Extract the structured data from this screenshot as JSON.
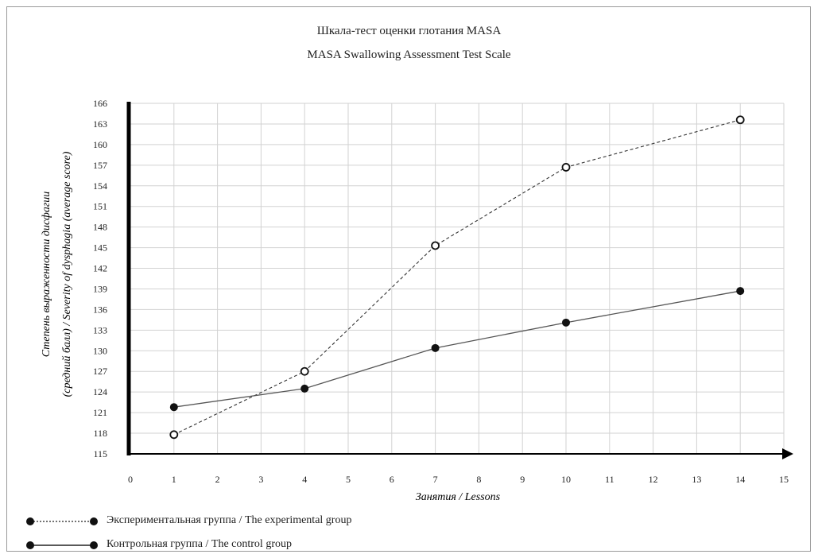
{
  "chart_data": {
    "type": "line",
    "title": "Шкала-тест оценки глотания MASA",
    "subtitle": "MASA Swallowing Assessment Test Scale",
    "xlabel": "Занятия / Lessons",
    "ylabel_line1": "Степень выраженности дисфагии",
    "ylabel_line2": "(средний балл) / Severity of dysphagia (average score)",
    "xlim": [
      0,
      15
    ],
    "ylim": [
      115,
      166
    ],
    "x_ticks": [
      0,
      1,
      2,
      3,
      4,
      5,
      6,
      7,
      8,
      9,
      10,
      11,
      12,
      13,
      14,
      15
    ],
    "y_ticks": [
      115,
      118,
      121,
      124,
      127,
      130,
      133,
      136,
      139,
      142,
      145,
      148,
      151,
      154,
      157,
      160,
      163,
      166
    ],
    "grid": true,
    "legend_position": "bottom-left",
    "series": [
      {
        "name": "Экспериментальная группа / The experimental group",
        "x": [
          1,
          4,
          7,
          10,
          14
        ],
        "y": [
          117.8,
          127.0,
          145.3,
          156.7,
          163.6
        ],
        "line_style": "dashed",
        "marker": "open-circle"
      },
      {
        "name": "Контрольная группа  / The control group",
        "x": [
          1,
          4,
          7,
          10,
          14
        ],
        "y": [
          121.8,
          124.5,
          130.4,
          134.1,
          138.7
        ],
        "line_style": "solid",
        "marker": "filled-circle"
      }
    ]
  }
}
